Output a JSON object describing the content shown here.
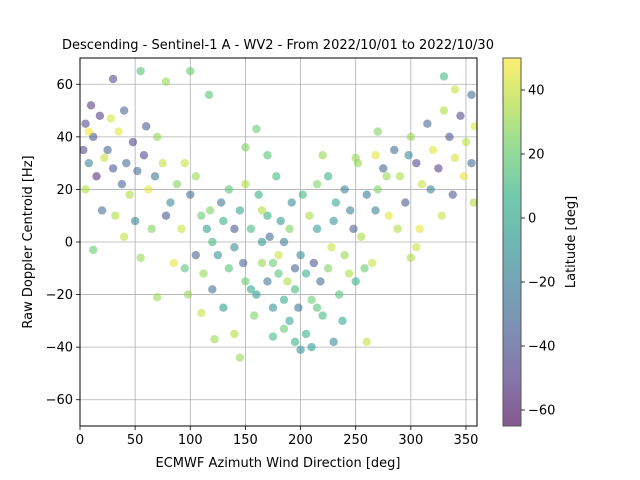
{
  "chart_data": {
    "type": "scatter",
    "title": "Descending - Sentinel-1 A - WV2 - From 2022/10/01 to 2022/10/30",
    "xlabel": "ECMWF Azimuth Wind Direction [deg]",
    "ylabel": "Raw Doppler Centroid [Hz]",
    "xlim": [
      0,
      360
    ],
    "ylim": [
      -70,
      70
    ],
    "xticks": [
      "0",
      "50",
      "100",
      "150",
      "200",
      "250",
      "300",
      "350"
    ],
    "xtick_values": [
      0,
      50,
      100,
      150,
      200,
      250,
      300,
      350
    ],
    "yticks": [
      "60",
      "40",
      "20",
      "0",
      "−20",
      "−40",
      "−60"
    ],
    "ytick_values": [
      60,
      40,
      20,
      0,
      -20,
      -40,
      -60
    ],
    "grid": true,
    "marker_alpha": 0.55,
    "colormap": "viridis",
    "colorbar": {
      "label": "Latitude [deg]",
      "range": [
        -65,
        50
      ],
      "ticks": [
        "40",
        "20",
        "0",
        "−20",
        "−40",
        "−60"
      ],
      "tick_values": [
        40,
        20,
        0,
        -20,
        -40,
        -60
      ]
    },
    "points": [
      {
        "x": 30,
        "y": 62,
        "lat": -45
      },
      {
        "x": 55,
        "y": 65,
        "lat": 15
      },
      {
        "x": 78,
        "y": 61,
        "lat": 30
      },
      {
        "x": 100,
        "y": 65,
        "lat": 20
      },
      {
        "x": 117,
        "y": 56,
        "lat": 15
      },
      {
        "x": 330,
        "y": 63,
        "lat": 10
      },
      {
        "x": 355,
        "y": 56,
        "lat": -30
      },
      {
        "x": 340,
        "y": 58,
        "lat": 40
      },
      {
        "x": 5,
        "y": 45,
        "lat": -45
      },
      {
        "x": 12,
        "y": 40,
        "lat": -40
      },
      {
        "x": 18,
        "y": 48,
        "lat": -50
      },
      {
        "x": 25,
        "y": 35,
        "lat": -35
      },
      {
        "x": 35,
        "y": 42,
        "lat": 45
      },
      {
        "x": 42,
        "y": 30,
        "lat": -30
      },
      {
        "x": 48,
        "y": 38,
        "lat": -45
      },
      {
        "x": 8,
        "y": 30,
        "lat": -20
      },
      {
        "x": 15,
        "y": 25,
        "lat": -55
      },
      {
        "x": 22,
        "y": 32,
        "lat": 40
      },
      {
        "x": 30,
        "y": 28,
        "lat": -40
      },
      {
        "x": 38,
        "y": 22,
        "lat": -35
      },
      {
        "x": 45,
        "y": 18,
        "lat": 35
      },
      {
        "x": 52,
        "y": 27,
        "lat": -30
      },
      {
        "x": 58,
        "y": 33,
        "lat": -45
      },
      {
        "x": 62,
        "y": 20,
        "lat": 45
      },
      {
        "x": 68,
        "y": 25,
        "lat": -25
      },
      {
        "x": 75,
        "y": 30,
        "lat": 38
      },
      {
        "x": 82,
        "y": 15,
        "lat": -15
      },
      {
        "x": 88,
        "y": 22,
        "lat": 25
      },
      {
        "x": 10,
        "y": 52,
        "lat": -50
      },
      {
        "x": 28,
        "y": 47,
        "lat": 42
      },
      {
        "x": 40,
        "y": 50,
        "lat": -35
      },
      {
        "x": 60,
        "y": 44,
        "lat": -40
      },
      {
        "x": 70,
        "y": 40,
        "lat": 30
      },
      {
        "x": 20,
        "y": 12,
        "lat": -30
      },
      {
        "x": 32,
        "y": 10,
        "lat": 35
      },
      {
        "x": 50,
        "y": 8,
        "lat": -20
      },
      {
        "x": 65,
        "y": 5,
        "lat": 25
      },
      {
        "x": 78,
        "y": 10,
        "lat": -40
      },
      {
        "x": 92,
        "y": 5,
        "lat": 40
      },
      {
        "x": 12,
        "y": -3,
        "lat": 20
      },
      {
        "x": 40,
        "y": 2,
        "lat": 38
      },
      {
        "x": 55,
        "y": -6,
        "lat": 30
      },
      {
        "x": 70,
        "y": -21,
        "lat": 30
      },
      {
        "x": 85,
        "y": -8,
        "lat": 45
      },
      {
        "x": 5,
        "y": 20,
        "lat": 35
      },
      {
        "x": 3,
        "y": 35,
        "lat": -45
      },
      {
        "x": 8,
        "y": 42,
        "lat": 48
      },
      {
        "x": 95,
        "y": 30,
        "lat": 40
      },
      {
        "x": 100,
        "y": 18,
        "lat": -30
      },
      {
        "x": 105,
        "y": 25,
        "lat": 30
      },
      {
        "x": 110,
        "y": 10,
        "lat": 20
      },
      {
        "x": 115,
        "y": 5,
        "lat": -5
      },
      {
        "x": 120,
        "y": 0,
        "lat": 10
      },
      {
        "x": 125,
        "y": -5,
        "lat": -10
      },
      {
        "x": 130,
        "y": 8,
        "lat": 5
      },
      {
        "x": 135,
        "y": -10,
        "lat": 15
      },
      {
        "x": 140,
        "y": -2,
        "lat": -15
      },
      {
        "x": 145,
        "y": 12,
        "lat": 0
      },
      {
        "x": 150,
        "y": -15,
        "lat": 20
      },
      {
        "x": 155,
        "y": 5,
        "lat": 10
      },
      {
        "x": 160,
        "y": -20,
        "lat": -5
      },
      {
        "x": 165,
        "y": -8,
        "lat": 30
      },
      {
        "x": 170,
        "y": 10,
        "lat": 5
      },
      {
        "x": 175,
        "y": -25,
        "lat": -10
      },
      {
        "x": 180,
        "y": -12,
        "lat": 15
      },
      {
        "x": 185,
        "y": 0,
        "lat": -20
      },
      {
        "x": 190,
        "y": -30,
        "lat": 0
      },
      {
        "x": 195,
        "y": -18,
        "lat": 10
      },
      {
        "x": 200,
        "y": -5,
        "lat": -15
      },
      {
        "x": 205,
        "y": -35,
        "lat": 5
      },
      {
        "x": 210,
        "y": -22,
        "lat": 20
      },
      {
        "x": 215,
        "y": 5,
        "lat": -5
      },
      {
        "x": 220,
        "y": -28,
        "lat": 10
      },
      {
        "x": 225,
        "y": -10,
        "lat": 25
      },
      {
        "x": 230,
        "y": 8,
        "lat": -10
      },
      {
        "x": 235,
        "y": -20,
        "lat": 15
      },
      {
        "x": 240,
        "y": -5,
        "lat": 30
      },
      {
        "x": 245,
        "y": 12,
        "lat": -20
      },
      {
        "x": 250,
        "y": -15,
        "lat": 5
      },
      {
        "x": 255,
        "y": 2,
        "lat": 35
      },
      {
        "x": 260,
        "y": 18,
        "lat": -25
      },
      {
        "x": 265,
        "y": -8,
        "lat": 40
      },
      {
        "x": 270,
        "y": 20,
        "lat": 25
      },
      {
        "x": 275,
        "y": 28,
        "lat": -35
      },
      {
        "x": 280,
        "y": 10,
        "lat": 45
      },
      {
        "x": 285,
        "y": 35,
        "lat": -30
      },
      {
        "x": 290,
        "y": 25,
        "lat": 35
      },
      {
        "x": 295,
        "y": 15,
        "lat": -40
      },
      {
        "x": 300,
        "y": 40,
        "lat": 30
      },
      {
        "x": 305,
        "y": 30,
        "lat": -45
      },
      {
        "x": 310,
        "y": 22,
        "lat": 40
      },
      {
        "x": 315,
        "y": 45,
        "lat": -35
      },
      {
        "x": 320,
        "y": 35,
        "lat": 45
      },
      {
        "x": 325,
        "y": 28,
        "lat": -50
      },
      {
        "x": 330,
        "y": 50,
        "lat": 35
      },
      {
        "x": 335,
        "y": 40,
        "lat": -40
      },
      {
        "x": 340,
        "y": 32,
        "lat": 42
      },
      {
        "x": 345,
        "y": 48,
        "lat": -45
      },
      {
        "x": 350,
        "y": 38,
        "lat": 38
      },
      {
        "x": 355,
        "y": 30,
        "lat": -30
      },
      {
        "x": 358,
        "y": 44,
        "lat": 45
      },
      {
        "x": 200,
        "y": -41,
        "lat": -10
      },
      {
        "x": 195,
        "y": -38,
        "lat": 5
      },
      {
        "x": 210,
        "y": -40,
        "lat": -5
      },
      {
        "x": 230,
        "y": -38,
        "lat": -15
      },
      {
        "x": 260,
        "y": -38,
        "lat": 40
      },
      {
        "x": 145,
        "y": -44,
        "lat": 30
      },
      {
        "x": 140,
        "y": -35,
        "lat": 35
      },
      {
        "x": 122,
        "y": -37,
        "lat": 30
      },
      {
        "x": 110,
        "y": -27,
        "lat": 40
      },
      {
        "x": 175,
        "y": -36,
        "lat": 10
      },
      {
        "x": 185,
        "y": -33,
        "lat": 20
      },
      {
        "x": 135,
        "y": 20,
        "lat": 15
      },
      {
        "x": 128,
        "y": 15,
        "lat": -25
      },
      {
        "x": 150,
        "y": 22,
        "lat": 35
      },
      {
        "x": 162,
        "y": 18,
        "lat": 5
      },
      {
        "x": 178,
        "y": 25,
        "lat": 10
      },
      {
        "x": 192,
        "y": 15,
        "lat": -15
      },
      {
        "x": 215,
        "y": 22,
        "lat": 25
      },
      {
        "x": 225,
        "y": 25,
        "lat": 5
      },
      {
        "x": 240,
        "y": 20,
        "lat": -20
      },
      {
        "x": 252,
        "y": 30,
        "lat": 30
      },
      {
        "x": 160,
        "y": 43,
        "lat": 20
      },
      {
        "x": 150,
        "y": 36,
        "lat": 25
      },
      {
        "x": 170,
        "y": 33,
        "lat": 15
      },
      {
        "x": 220,
        "y": 33,
        "lat": 30
      },
      {
        "x": 250,
        "y": 32,
        "lat": 30
      },
      {
        "x": 270,
        "y": 42,
        "lat": 25
      },
      {
        "x": 268,
        "y": 33,
        "lat": 45
      },
      {
        "x": 120,
        "y": -18,
        "lat": -30
      },
      {
        "x": 112,
        "y": -12,
        "lat": 30
      },
      {
        "x": 130,
        "y": -25,
        "lat": -5
      },
      {
        "x": 148,
        "y": -8,
        "lat": -35
      },
      {
        "x": 158,
        "y": -28,
        "lat": 25
      },
      {
        "x": 172,
        "y": 2,
        "lat": -30
      },
      {
        "x": 188,
        "y": -15,
        "lat": 35
      },
      {
        "x": 198,
        "y": -25,
        "lat": -25
      },
      {
        "x": 208,
        "y": 10,
        "lat": 35
      },
      {
        "x": 218,
        "y": -15,
        "lat": -30
      },
      {
        "x": 228,
        "y": -2,
        "lat": 40
      },
      {
        "x": 238,
        "y": -30,
        "lat": 0
      },
      {
        "x": 248,
        "y": 5,
        "lat": -35
      },
      {
        "x": 258,
        "y": -10,
        "lat": 20
      },
      {
        "x": 268,
        "y": 12,
        "lat": -20
      },
      {
        "x": 278,
        "y": 25,
        "lat": 30
      },
      {
        "x": 288,
        "y": 5,
        "lat": 35
      },
      {
        "x": 298,
        "y": 33,
        "lat": -15
      },
      {
        "x": 308,
        "y": 5,
        "lat": 45
      },
      {
        "x": 318,
        "y": 20,
        "lat": -20
      },
      {
        "x": 328,
        "y": 10,
        "lat": 40
      },
      {
        "x": 338,
        "y": 18,
        "lat": -40
      },
      {
        "x": 348,
        "y": 25,
        "lat": 45
      },
      {
        "x": 357,
        "y": 15,
        "lat": 35
      },
      {
        "x": 300,
        "y": -6,
        "lat": 35
      },
      {
        "x": 305,
        "y": -2,
        "lat": 40
      },
      {
        "x": 95,
        "y": -10,
        "lat": 15
      },
      {
        "x": 98,
        "y": -20,
        "lat": 30
      },
      {
        "x": 105,
        "y": -5,
        "lat": -35
      },
      {
        "x": 118,
        "y": 12,
        "lat": 25
      },
      {
        "x": 140,
        "y": 5,
        "lat": -40
      },
      {
        "x": 165,
        "y": 12,
        "lat": 35
      },
      {
        "x": 182,
        "y": 8,
        "lat": -5
      },
      {
        "x": 202,
        "y": 18,
        "lat": 10
      },
      {
        "x": 212,
        "y": -8,
        "lat": -40
      },
      {
        "x": 232,
        "y": 15,
        "lat": 0
      },
      {
        "x": 244,
        "y": -12,
        "lat": 35
      },
      {
        "x": 180,
        "y": -5,
        "lat": 40
      },
      {
        "x": 190,
        "y": 5,
        "lat": 25
      },
      {
        "x": 170,
        "y": -15,
        "lat": -25
      },
      {
        "x": 155,
        "y": -18,
        "lat": 0
      },
      {
        "x": 205,
        "y": -12,
        "lat": 5
      },
      {
        "x": 215,
        "y": -25,
        "lat": 15
      },
      {
        "x": 195,
        "y": -10,
        "lat": -35
      },
      {
        "x": 185,
        "y": -22,
        "lat": 5
      },
      {
        "x": 175,
        "y": -8,
        "lat": 20
      },
      {
        "x": 165,
        "y": 0,
        "lat": -10
      }
    ]
  },
  "colors": {
    "grid": "#b0b0b0",
    "axes": "#000000",
    "background": "#ffffff"
  }
}
